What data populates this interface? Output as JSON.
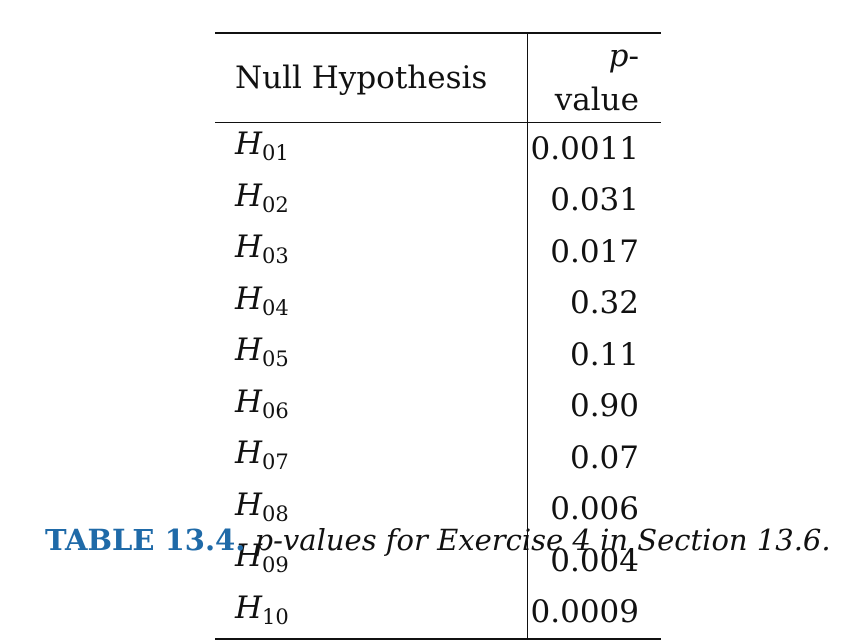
{
  "table": {
    "headers": {
      "hypothesis": "Null Hypothesis",
      "p_italic": "p",
      "p_rest": "-value"
    },
    "rows": [
      {
        "letter": "H",
        "sub": "01",
        "p": "0.0011"
      },
      {
        "letter": "H",
        "sub": "02",
        "p": "0.031"
      },
      {
        "letter": "H",
        "sub": "03",
        "p": "0.017"
      },
      {
        "letter": "H",
        "sub": "04",
        "p": "0.32"
      },
      {
        "letter": "H",
        "sub": "05",
        "p": "0.11"
      },
      {
        "letter": "H",
        "sub": "06",
        "p": "0.90"
      },
      {
        "letter": "H",
        "sub": "07",
        "p": "0.07"
      },
      {
        "letter": "H",
        "sub": "08",
        "p": "0.006"
      },
      {
        "letter": "H",
        "sub": "09",
        "p": "0.004"
      },
      {
        "letter": "H",
        "sub": "10",
        "p": "0.0009"
      }
    ]
  },
  "caption": {
    "label": "TABLE 13.4.",
    "text": "p-values for Exercise 4 in Section 13.6."
  },
  "colors": {
    "caption_label": "#1f6aa8"
  }
}
